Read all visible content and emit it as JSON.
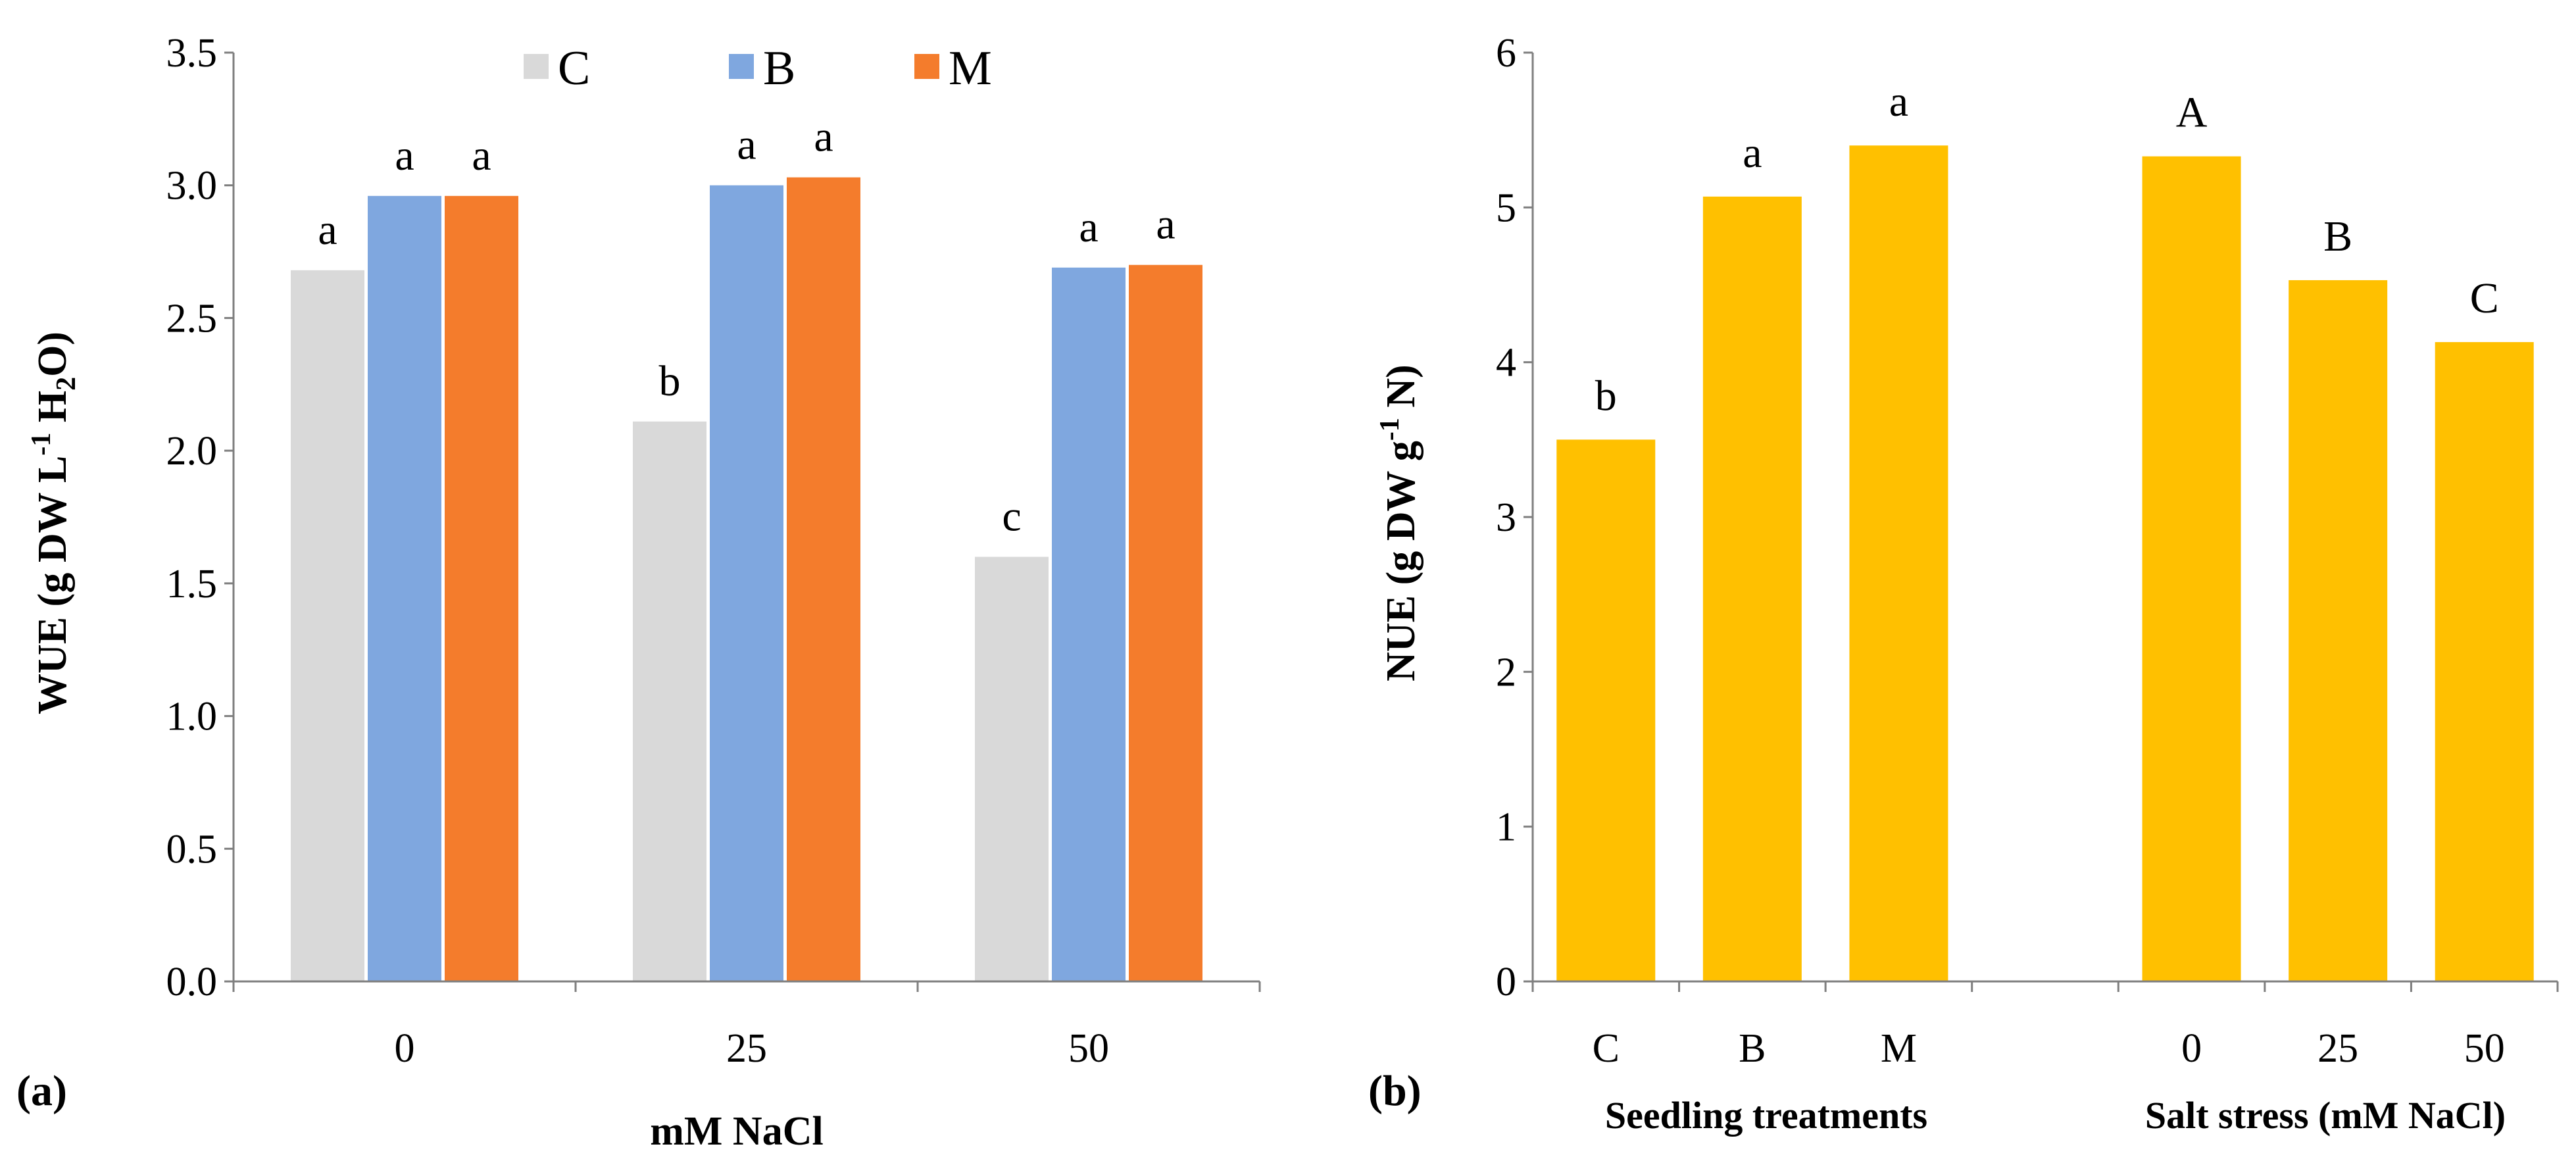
{
  "chart_data": [
    {
      "panel": "(a)",
      "type": "bar",
      "xlabel": "mM NaCl",
      "ylabel": "WUE (g DW L-1 H2O)",
      "ylabel_parts": {
        "main": "WUE (g DW L",
        "sup": "-1",
        "mid": " H",
        "sub": "2",
        "end": "O)"
      },
      "categories": [
        "0",
        "25",
        "50"
      ],
      "ylim": [
        0,
        3.5
      ],
      "yticks": [
        "0.0",
        "0.5",
        "1.0",
        "1.5",
        "2.0",
        "2.5",
        "3.0",
        "3.5"
      ],
      "legend_position": "top",
      "series": [
        {
          "name": "C",
          "color": "#d9d9d9",
          "values": [
            2.68,
            2.11,
            1.6
          ],
          "labels": [
            "a",
            "b",
            "c"
          ]
        },
        {
          "name": "B",
          "color": "#7fa7df",
          "values": [
            2.96,
            3.0,
            2.69
          ],
          "labels": [
            "a",
            "a",
            "a"
          ]
        },
        {
          "name": "M",
          "color": "#f47c2c",
          "values": [
            2.96,
            3.03,
            2.7
          ],
          "labels": [
            "a",
            "a",
            "a"
          ]
        }
      ]
    },
    {
      "panel": "(b)",
      "type": "bar",
      "ylabel": "NUE (g DW g-1 N)",
      "ylabel_parts": {
        "main": "NUE (g DW g",
        "sup": "-1",
        "end": " N)"
      },
      "ylim": [
        0,
        6
      ],
      "yticks": [
        "0",
        "1",
        "2",
        "3",
        "4",
        "5",
        "6"
      ],
      "color": "#ffc000",
      "groups": [
        {
          "title": "Seedling treatments",
          "categories": [
            "C",
            "B",
            "M"
          ],
          "values": [
            3.5,
            5.07,
            5.4
          ],
          "labels": [
            "b",
            "a",
            "a"
          ]
        },
        {
          "title": "Salt stress (mM NaCl)",
          "categories": [
            "0",
            "25",
            "50"
          ],
          "values": [
            5.33,
            4.53,
            4.13
          ],
          "labels": [
            "A",
            "B",
            "C"
          ]
        }
      ]
    }
  ]
}
